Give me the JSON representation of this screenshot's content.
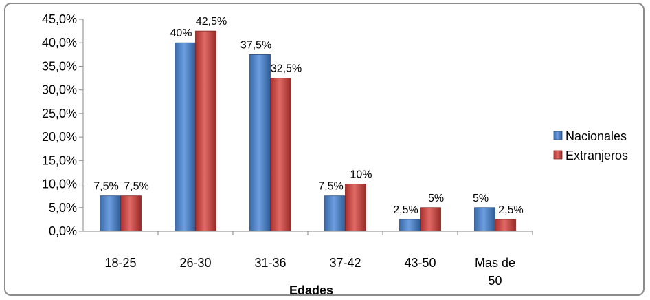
{
  "chart_data": {
    "type": "bar",
    "categories": [
      "18-25",
      "26-30",
      "31-36",
      "37-42",
      "43-50",
      [
        "Mas de",
        "50"
      ]
    ],
    "series": [
      {
        "name": "Nacionales",
        "values": [
          7.5,
          40,
          37.5,
          7.5,
          2.5,
          5
        ],
        "labels": [
          "7,5%",
          "40%",
          "37,5%",
          "7,5%",
          "2,5%",
          "5%"
        ],
        "color": "#4f81bd"
      },
      {
        "name": "Extranjeros",
        "values": [
          7.5,
          42.5,
          32.5,
          10,
          5,
          2.5
        ],
        "labels": [
          "7,5%",
          "42,5%",
          "32,5%",
          "10%",
          "5%",
          "2,5%"
        ],
        "color": "#c0504d"
      }
    ],
    "xlabel": "Edades",
    "ylabel": "",
    "ylim": [
      0,
      45
    ],
    "yticks": [
      "0,0%",
      "5,0%",
      "10,0%",
      "15,0%",
      "20,0%",
      "25,0%",
      "30,0%",
      "35,0%",
      "40,0%",
      "45,0%"
    ],
    "legend_position": "right",
    "grid": false
  }
}
